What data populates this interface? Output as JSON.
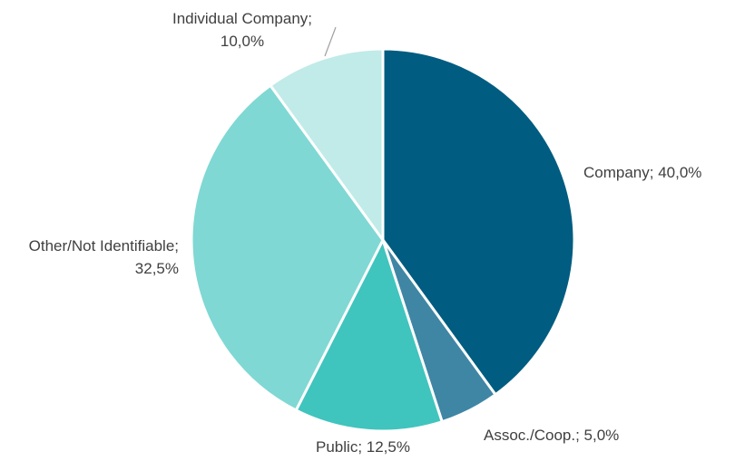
{
  "chart_data": {
    "type": "pie",
    "categories": [
      "Company; 40,0%",
      "Assoc./Coop.; 5,0%",
      "Public; 12,5%",
      "Other/Not Identifiable; 32,5%",
      "Individual Company; 10,0%"
    ],
    "values": [
      40.0,
      5.0,
      12.5,
      32.5,
      10.0
    ],
    "colors": [
      "#005c80",
      "#3f86a4",
      "#40c4be",
      "#7fd8d3",
      "#c0ebe8"
    ]
  }
}
